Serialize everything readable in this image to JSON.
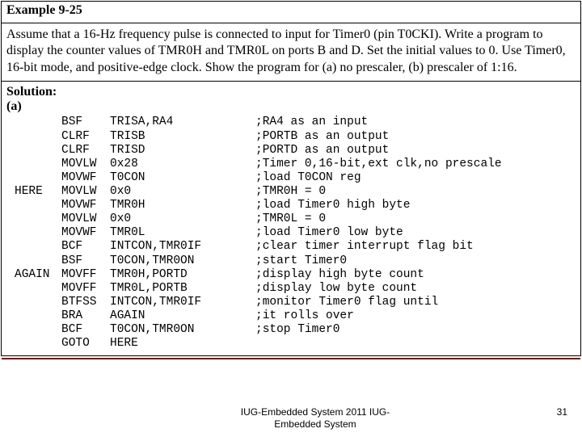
{
  "header": {
    "title": "Example 9-25"
  },
  "problem": {
    "text": "Assume that a 16-Hz frequency pulse is connected to input for Timer0 (pin T0CKI). Write a program to display the counter values of TMR0H and TMR0L on ports B and D. Set the initial values to 0. Use Timer0, 16-bit mode, and positive-edge clock. Show the program for (a) no prescaler, (b) prescaler of 1:16."
  },
  "solution": {
    "label": "Solution:",
    "part_a": "(a)"
  },
  "code": {
    "lines": [
      {
        "label": "",
        "op": "BSF",
        "arg": "TRISA,RA4",
        "cmt": ";RA4 as an input"
      },
      {
        "label": "",
        "op": "CLRF",
        "arg": "TRISB",
        "cmt": ";PORTB as an output"
      },
      {
        "label": "",
        "op": "CLRF",
        "arg": "TRISD",
        "cmt": ";PORTD as an output"
      },
      {
        "label": "",
        "op": "MOVLW",
        "arg": "0x28",
        "cmt": ";Timer 0,16-bit,ext clk,no prescale"
      },
      {
        "label": "",
        "op": "MOVWF",
        "arg": "T0CON",
        "cmt": ";load T0CON reg"
      },
      {
        "label": "HERE",
        "op": "MOVLW",
        "arg": "0x0",
        "cmt": ";TMR0H = 0"
      },
      {
        "label": "",
        "op": "MOVWF",
        "arg": "TMR0H",
        "cmt": ";load Timer0 high byte"
      },
      {
        "label": "",
        "op": "MOVLW",
        "arg": "0x0",
        "cmt": ";TMR0L = 0"
      },
      {
        "label": "",
        "op": "MOVWF",
        "arg": "TMR0L",
        "cmt": ";load Timer0 low byte"
      },
      {
        "label": "",
        "op": "BCF",
        "arg": "INTCON,TMR0IF",
        "cmt": ";clear timer interrupt flag bit"
      },
      {
        "label": "",
        "op": "BSF",
        "arg": "T0CON,TMR0ON",
        "cmt": ";start Timer0"
      },
      {
        "label": "AGAIN",
        "op": "MOVFF",
        "arg": "TMR0H,PORTD",
        "cmt": ";display high byte count"
      },
      {
        "label": "",
        "op": "MOVFF",
        "arg": "TMR0L,PORTB",
        "cmt": ";display low byte count"
      },
      {
        "label": "",
        "op": "BTFSS",
        "arg": "INTCON,TMR0IF",
        "cmt": ";monitor Timer0 flag until"
      },
      {
        "label": "",
        "op": "BRA",
        "arg": "AGAIN",
        "cmt": ";it rolls over"
      },
      {
        "label": "",
        "op": "BCF",
        "arg": "T0CON,TMR0ON",
        "cmt": ";stop Timer0"
      },
      {
        "label": "",
        "op": "GOTO",
        "arg": "HERE",
        "cmt": ""
      }
    ]
  },
  "footer": {
    "center_line1": "IUG-Embedded System 2011 IUG-",
    "center_line2": "Embedded System",
    "page": "31"
  }
}
